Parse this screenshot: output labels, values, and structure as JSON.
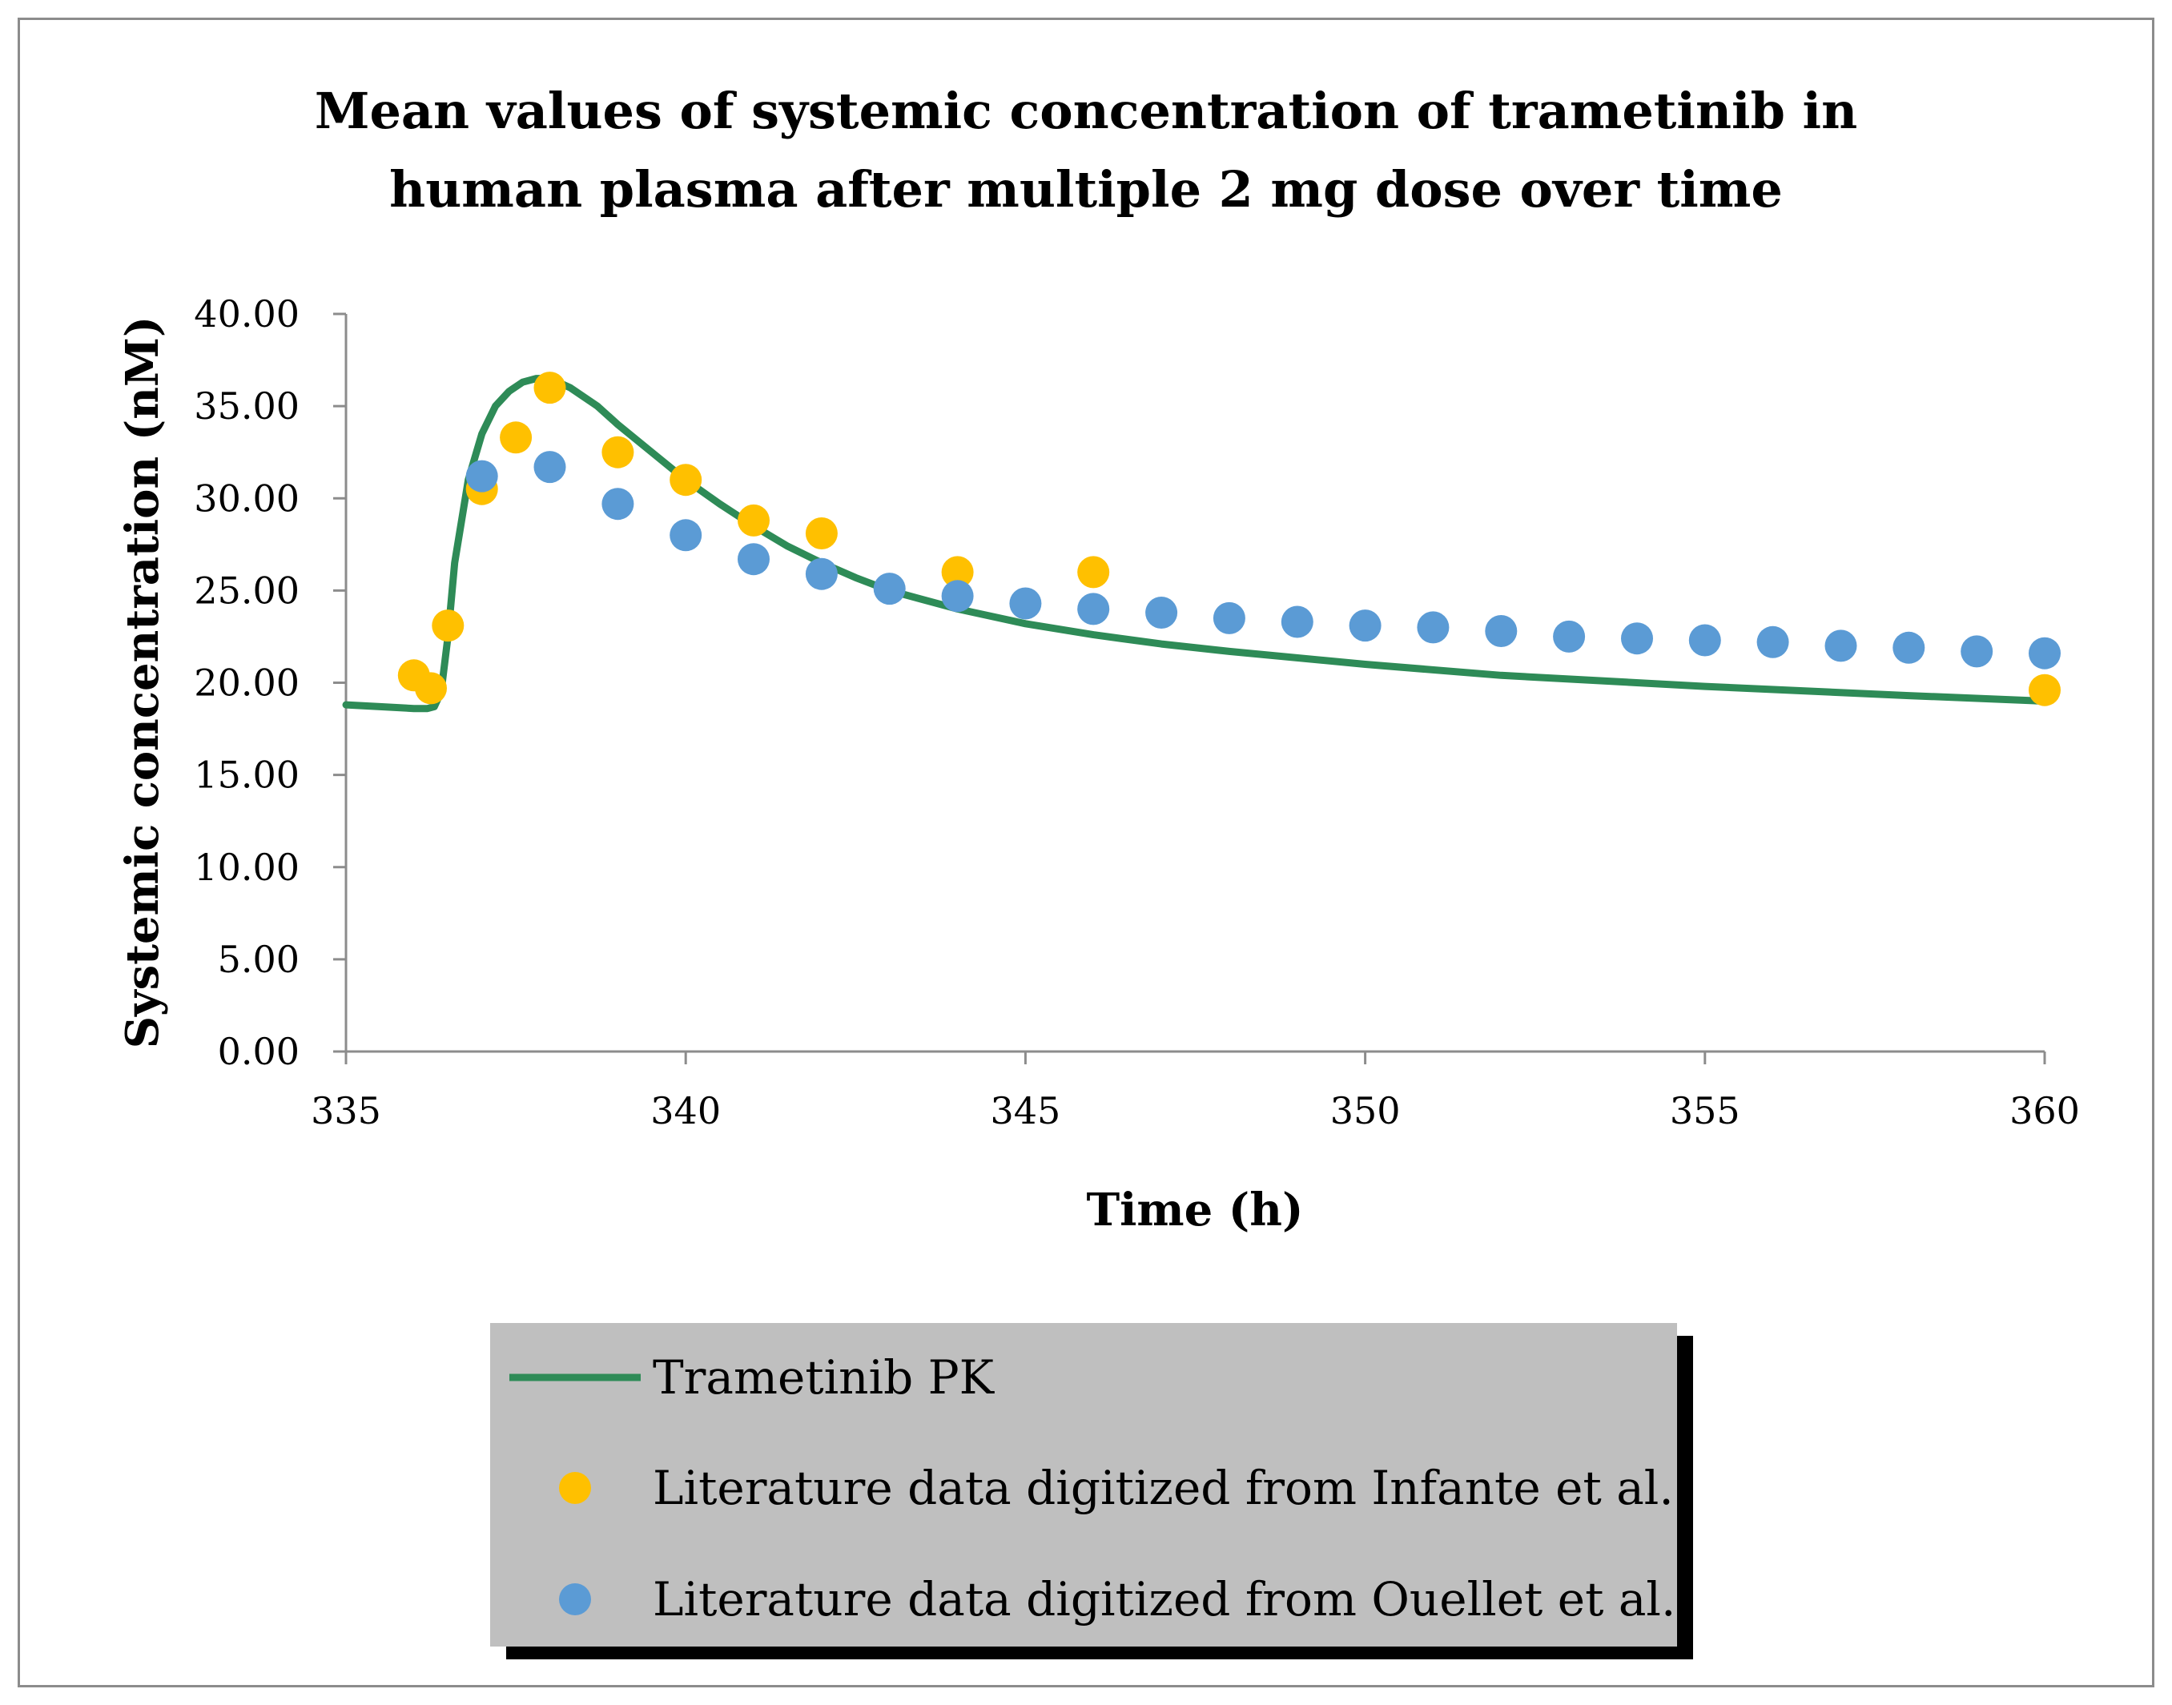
{
  "chart_data": {
    "type": "line",
    "title_lines": [
      "Mean values of systemic concentration of trametinib in",
      "human plasma after multiple 2 mg dose over time"
    ],
    "xlabel": "Time (h)",
    "ylabel": "Systemic concentration (nM)",
    "xlim": [
      335,
      360
    ],
    "ylim": [
      0,
      40
    ],
    "xticks": [
      "335",
      "340",
      "345",
      "350",
      "355",
      "360"
    ],
    "yticks": [
      "0.00",
      "5.00",
      "10.00",
      "15.00",
      "20.00",
      "25.00",
      "30.00",
      "35.00",
      "40.00"
    ],
    "grid": false,
    "legend_position": "bottom",
    "series": [
      {
        "name": "Trametinib PK",
        "kind": "line",
        "color": "#2e8b57",
        "x": [
          335.0,
          335.5,
          336.0,
          336.2,
          336.3,
          336.4,
          336.5,
          336.6,
          336.8,
          337.0,
          337.2,
          337.4,
          337.6,
          337.8,
          338.0,
          338.3,
          338.7,
          339.0,
          339.5,
          340.0,
          340.5,
          341.0,
          341.5,
          342.0,
          342.5,
          343.0,
          344.0,
          345.0,
          346.0,
          347.0,
          348.0,
          350.0,
          352.0,
          355.0,
          358.0,
          360.0
        ],
        "y": [
          18.8,
          18.7,
          18.6,
          18.6,
          18.7,
          19.5,
          22.5,
          26.5,
          31.0,
          33.5,
          35.0,
          35.8,
          36.3,
          36.5,
          36.5,
          36.0,
          35.0,
          34.0,
          32.5,
          31.0,
          29.7,
          28.5,
          27.4,
          26.5,
          25.7,
          25.0,
          24.0,
          23.2,
          22.6,
          22.1,
          21.7,
          21.0,
          20.4,
          19.8,
          19.3,
          19.0
        ]
      },
      {
        "name": "Literature data digitized from Infante et al.",
        "kind": "scatter",
        "color": "#ffc000",
        "x": [
          336.0,
          336.25,
          336.5,
          337.0,
          337.5,
          338.0,
          339.0,
          340.0,
          341.0,
          342.0,
          344.0,
          346.0,
          360.0
        ],
        "y": [
          20.4,
          19.7,
          23.1,
          30.5,
          33.3,
          36.0,
          32.5,
          31.0,
          28.8,
          28.1,
          26.0,
          26.0,
          19.6
        ]
      },
      {
        "name": "Literature data digitized from Ouellet et al.",
        "kind": "scatter",
        "color": "#5b9bd5",
        "x": [
          337,
          338,
          339,
          340,
          341,
          342,
          343,
          344,
          345,
          346,
          347,
          348,
          349,
          350,
          351,
          352,
          353,
          354,
          355,
          356,
          357,
          358,
          359,
          360
        ],
        "y": [
          31.2,
          31.7,
          29.7,
          28.0,
          26.7,
          25.9,
          25.1,
          24.7,
          24.3,
          24.0,
          23.8,
          23.5,
          23.3,
          23.1,
          23.0,
          22.8,
          22.5,
          22.4,
          22.3,
          22.2,
          22.0,
          21.9,
          21.7,
          21.6
        ]
      }
    ]
  }
}
